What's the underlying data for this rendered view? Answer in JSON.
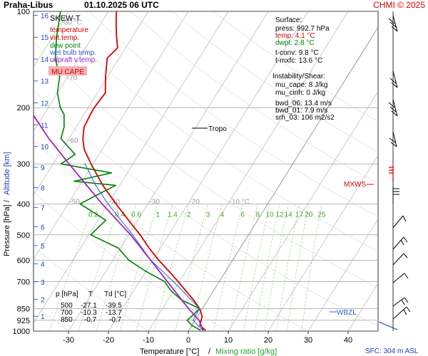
{
  "header": {
    "station": "Praha-Libus",
    "datetime": "01.10.2025 06 UTC",
    "credit": "CHMI © 2025"
  },
  "legend": {
    "title": "SKEW-T",
    "items": [
      {
        "label": "temperature",
        "color": "#d40000"
      },
      {
        "label": "virt.temp.",
        "color": "#d40000"
      },
      {
        "label": "dew point",
        "color": "#008000"
      },
      {
        "label": "wet bulb temp.",
        "color": "#3060d0"
      },
      {
        "label": "udpraft v.temp.",
        "color": "#a020c0"
      }
    ],
    "badge": "MU CAPE"
  },
  "surface": {
    "heading": "Surface:",
    "press": "press: 992.7 hPa",
    "temp": "temp: 4.1 °C",
    "dwpt": "dwpt: 2.8 °C",
    "tconv": "t-conv: 9.8 °C",
    "tmxfc": "t-mxfc: 13.6 °C"
  },
  "instability": {
    "heading": "Instability/Shear:",
    "mu_cape": "mu_cape: 8 J/kg",
    "mu_cinh": "mu_cinh: 0 J/kg",
    "bwd06": "bwd_06: 13.4 m/s",
    "bwd01": "bwd_01: 7.9 m/s",
    "srh03": "srh_03: 106 m2/s2"
  },
  "table": {
    "headers": [
      "p [hPa]",
      "T",
      "Td [°C]"
    ],
    "rows": [
      [
        "500",
        "-27.1",
        "-39.5"
      ],
      [
        "700",
        "-10.3",
        "-13.7"
      ],
      [
        "850",
        "-0.7",
        "-0.7"
      ]
    ]
  },
  "labels": {
    "tropo": "Tropo",
    "mxws": "MXWS",
    "wbzl": "WBZL",
    "sfc": "SFC: 304 m ASL"
  },
  "axes": {
    "xlabel": "Temperature [°C]",
    "xlabel_sep": "/",
    "xlabel2": "Mixing ratio [g/kg]",
    "ylabel": "Pressure [hPa]",
    "ylabel_sep": "/",
    "ylabel2": "Altitude [km]"
  },
  "colors": {
    "temperature": "#d40000",
    "dewpoint": "#008000",
    "wetbulb": "#3060d0",
    "parcel": "#a020c0",
    "mixing": "#8ccf6a",
    "isotherm": "#9a9a9a",
    "altitude": "#2040c0"
  },
  "chart_data": {
    "type": "line",
    "xlim": [
      -35,
      45
    ],
    "ylim": [
      1000,
      100
    ],
    "log_y": true,
    "pressure_ticks": [
      100,
      200,
      300,
      400,
      500,
      600,
      700,
      850,
      925,
      1000
    ],
    "temperature_ticks": [
      -30,
      -20,
      -10,
      0,
      10,
      20,
      30,
      40
    ],
    "skew_isotherms": [
      {
        "t": -80,
        "label": "-80 °C"
      },
      {
        "t": -70,
        "label": "-70"
      },
      {
        "t": -60,
        "label": "-60"
      },
      {
        "t": -50,
        "label": "-50"
      },
      {
        "t": -40,
        "label": "-40"
      },
      {
        "t": -30,
        "label": "-30"
      },
      {
        "t": -20,
        "label": "-20"
      },
      {
        "t": -10,
        "label": "-10 °C"
      }
    ],
    "mixing_ratio_labels": [
      "0.2",
      "0.4",
      "0.6",
      "1",
      "1.4",
      "2",
      "3",
      "4",
      "6",
      "8",
      "10",
      "12",
      "14",
      "17",
      "20",
      "25"
    ],
    "altitude_km_labels": [
      "1",
      "2",
      "3",
      "4",
      "5",
      "6",
      "7",
      "8",
      "9",
      "10",
      "11",
      "12",
      "13",
      "14",
      "15",
      "16"
    ],
    "series": [
      {
        "name": "temperature",
        "p": [
          993,
          960,
          925,
          900,
          850,
          800,
          750,
          700,
          650,
          600,
          550,
          500,
          450,
          400,
          350,
          300,
          270,
          250,
          230,
          210,
          200,
          180,
          160,
          140,
          130,
          120,
          110,
          100
        ],
        "t": [
          4.1,
          2.0,
          1.5,
          1.2,
          -0.7,
          -3.5,
          -6.8,
          -10.3,
          -14.2,
          -18.5,
          -22.8,
          -27.1,
          -32.3,
          -38.0,
          -44.2,
          -50.5,
          -54.5,
          -56.5,
          -58.0,
          -58.4,
          -58.5,
          -58.0,
          -60.5,
          -63.0,
          -62.0,
          -64.0,
          -66.0,
          -68.0
        ]
      },
      {
        "name": "dew point",
        "p": [
          993,
          960,
          925,
          900,
          850,
          800,
          750,
          700,
          650,
          600,
          550,
          500,
          450,
          400,
          350,
          340,
          320,
          300,
          280,
          250,
          230,
          210,
          200,
          180,
          160,
          140,
          120,
          100
        ],
        "t": [
          2.8,
          0.0,
          -2.0,
          -1.5,
          -0.7,
          -6.5,
          -10.5,
          -13.7,
          -20.0,
          -26.0,
          -30.5,
          -39.5,
          -38.0,
          -47.0,
          -41.0,
          -52.0,
          -44.0,
          -58.0,
          -56.0,
          -62.0,
          -63.0,
          -65.0,
          -67.0,
          -70.0,
          -72.0,
          -76.0,
          -79.0,
          -82.0
        ]
      },
      {
        "name": "wet bulb temp.",
        "p": [
          993,
          925,
          850,
          700,
          600,
          500,
          400,
          350,
          300
        ],
        "t": [
          3.4,
          -0.5,
          -0.7,
          -11.5,
          -20.5,
          -29.0,
          -40.0,
          -46.0,
          -52.0
        ]
      },
      {
        "name": "udpraft v.temp.",
        "p": [
          993,
          925,
          850,
          700,
          600,
          500,
          400,
          300,
          250,
          200,
          150,
          100
        ],
        "t": [
          3.5,
          1.0,
          -3.5,
          -13.0,
          -20.5,
          -29.5,
          -41.5,
          -56.0,
          -65.0,
          -75.0,
          -87.0,
          -102.0
        ]
      }
    ]
  }
}
